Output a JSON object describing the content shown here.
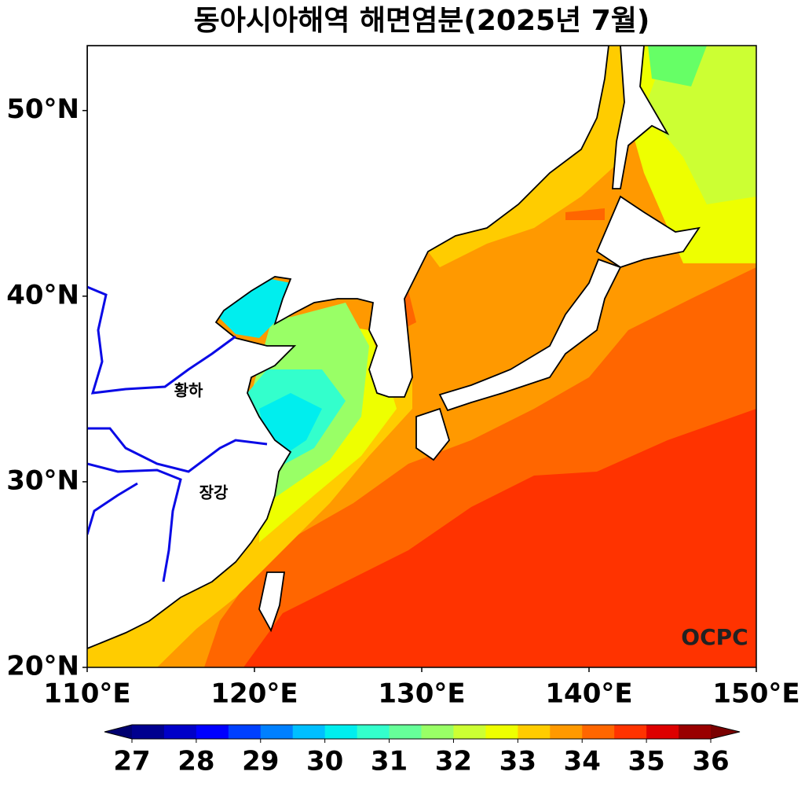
{
  "title": "동아시아해역 해면염분(2025년 7월)",
  "map": {
    "xlim": [
      110,
      150
    ],
    "ylim": [
      20,
      53.5
    ],
    "xticks": [
      {
        "value": 110,
        "label": "110°E"
      },
      {
        "value": 120,
        "label": "120°E"
      },
      {
        "value": 130,
        "label": "130°E"
      },
      {
        "value": 140,
        "label": "140°E"
      },
      {
        "value": 150,
        "label": "150°E"
      }
    ],
    "yticks": [
      {
        "value": 20,
        "label": "20°N"
      },
      {
        "value": 30,
        "label": "30°N"
      },
      {
        "value": 40,
        "label": "40°N"
      },
      {
        "value": 50,
        "label": "50°N"
      }
    ],
    "river_labels": [
      "황하",
      "장강"
    ],
    "logo": "OCPC"
  },
  "colorbar": {
    "lim": [
      27,
      36
    ],
    "ticks": [
      27,
      28,
      29,
      30,
      31,
      32,
      33,
      34,
      35,
      36
    ],
    "colors": [
      "#00008f",
      "#0000c8",
      "#0000ff",
      "#0040ff",
      "#0080ff",
      "#00bfff",
      "#00eeee",
      "#33ffcc",
      "#66ff99",
      "#99ff66",
      "#ccff33",
      "#eeff00",
      "#ffcc00",
      "#ff9900",
      "#ff6600",
      "#ff3300",
      "#dd0000",
      "#990000"
    ],
    "under_color": "#000070",
    "over_color": "#7a0000"
  }
}
